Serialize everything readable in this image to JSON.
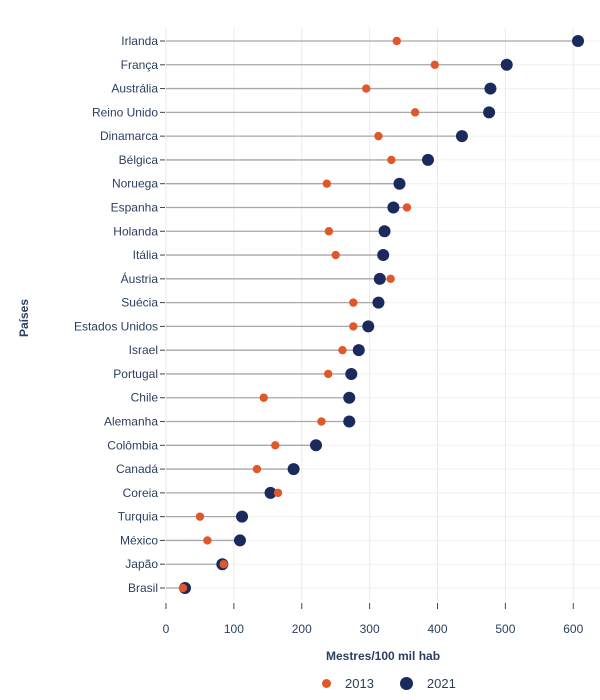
{
  "chart_data": {
    "type": "dot-plot",
    "orientation": "horizontal",
    "xlabel": "Mestres/100 mil hab",
    "ylabel": "Países",
    "xlim": [
      0,
      640
    ],
    "xticks": [
      0,
      100,
      200,
      300,
      400,
      500,
      600
    ],
    "grid": true,
    "legend_position": "bottom",
    "categories": [
      "Irlanda",
      "França",
      "Austrália",
      "Reino Unido",
      "Dinamarca",
      "Bélgica",
      "Noruega",
      "Espanha",
      "Holanda",
      "Itália",
      "Áustria",
      "Suécia",
      "Estados Unidos",
      "Israel",
      "Portugal",
      "Chile",
      "Alemanha",
      "Colômbia",
      "Canadá",
      "Coreia",
      "Turquia",
      "México",
      "Japão",
      "Brasil"
    ],
    "series": [
      {
        "name": "2013",
        "color": "#e0582a",
        "values": [
          340,
          396,
          295,
          367,
          313,
          332,
          237,
          355,
          240,
          250,
          331,
          276,
          276,
          260,
          239,
          144,
          229,
          161,
          134,
          165,
          50,
          61,
          85,
          25
        ]
      },
      {
        "name": "2021",
        "color": "#1b2a5c",
        "values": [
          607,
          502,
          478,
          476,
          436,
          386,
          344,
          335,
          322,
          320,
          315,
          313,
          298,
          284,
          273,
          270,
          270,
          221,
          188,
          154,
          112,
          109,
          83,
          28
        ]
      }
    ]
  }
}
